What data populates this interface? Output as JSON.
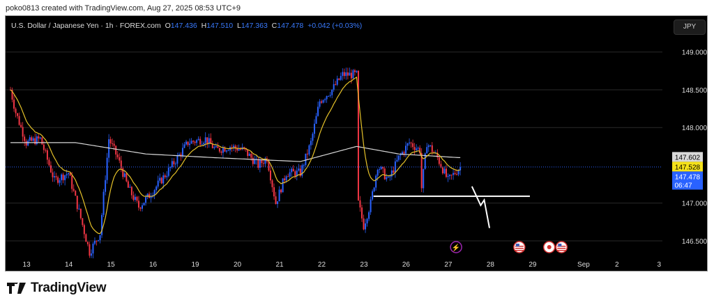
{
  "attribution": "poko0813 created with TradingView.com, Aug 27, 2025 08:53 UTC+9",
  "legend": {
    "symbol": "U.S. Dollar / Japanese Yen · 1h · FOREX.com",
    "o_label": "O",
    "o": "147.436",
    "h_label": "H",
    "h": "147.510",
    "l_label": "L",
    "l": "147.363",
    "c_label": "C",
    "c": "147.478",
    "change": "+0.042 (+0.03%)"
  },
  "currency_button": "JPY",
  "brand": "TradingView",
  "colors": {
    "up": "#2962ff",
    "down": "#f23645",
    "ma_fast": "#e6c229",
    "ma_slow": "#d8d8d8",
    "accent": "#2962ff"
  },
  "chart_data": {
    "type": "candlestick",
    "title": "U.S. Dollar / Japanese Yen · 1h · FOREX.com",
    "ylim": [
      146.1,
      149.25
    ],
    "y_ticks": [
      "149.000",
      "148.500",
      "148.000",
      "147.000",
      "146.500"
    ],
    "y_tick_values": [
      149.0,
      148.5,
      148.0,
      147.0,
      146.5
    ],
    "x_ticks": [
      {
        "label": "13",
        "hour": 6
      },
      {
        "label": "14",
        "hour": 30
      },
      {
        "label": "15",
        "hour": 54
      },
      {
        "label": "16",
        "hour": 78
      },
      {
        "label": "19",
        "hour": 102
      },
      {
        "label": "20",
        "hour": 126
      },
      {
        "label": "21",
        "hour": 150
      },
      {
        "label": "22",
        "hour": 174
      },
      {
        "label": "23",
        "hour": 198
      },
      {
        "label": "26",
        "hour": 222
      },
      {
        "label": "27",
        "hour": 246
      },
      {
        "label": "28",
        "hour": 270
      },
      {
        "label": "29",
        "hour": 294
      },
      {
        "label": "Sep",
        "hour": 323
      },
      {
        "label": "2",
        "hour": 342
      },
      {
        "label": "3",
        "hour": 366
      }
    ],
    "close_path_keyframes": [
      [
        0,
        148.5
      ],
      [
        3,
        148.2
      ],
      [
        9,
        147.8
      ],
      [
        17,
        147.85
      ],
      [
        25,
        147.3
      ],
      [
        33,
        147.4
      ],
      [
        40,
        146.8
      ],
      [
        45,
        146.35
      ],
      [
        51,
        146.6
      ],
      [
        56,
        147.85
      ],
      [
        61,
        147.6
      ],
      [
        67,
        147.2
      ],
      [
        73,
        146.95
      ],
      [
        79,
        147.1
      ],
      [
        89,
        147.4
      ],
      [
        101,
        147.8
      ],
      [
        111,
        147.85
      ],
      [
        117,
        147.7
      ],
      [
        125,
        147.75
      ],
      [
        133,
        147.7
      ],
      [
        141,
        147.5
      ],
      [
        146,
        147.6
      ],
      [
        151,
        147.0
      ],
      [
        157,
        147.4
      ],
      [
        165,
        147.4
      ],
      [
        171,
        147.8
      ],
      [
        176,
        148.35
      ],
      [
        183,
        148.5
      ],
      [
        189,
        148.7
      ],
      [
        197,
        148.7
      ],
      [
        198,
        147.0
      ],
      [
        201,
        146.7
      ],
      [
        205,
        147.0
      ],
      [
        209,
        147.5
      ],
      [
        215,
        147.3
      ],
      [
        221,
        147.6
      ],
      [
        227,
        147.8
      ],
      [
        233,
        147.7
      ],
      [
        234,
        147.2
      ],
      [
        237,
        147.8
      ],
      [
        243,
        147.6
      ],
      [
        249,
        147.3
      ],
      [
        256,
        147.478
      ]
    ],
    "ma_slow_keyframes": [
      [
        0,
        147.8
      ],
      [
        37,
        147.8
      ],
      [
        77,
        147.65
      ],
      [
        117,
        147.6
      ],
      [
        165,
        147.55
      ],
      [
        197,
        147.75
      ],
      [
        221,
        147.65
      ],
      [
        255,
        147.602
      ]
    ],
    "price_labels": {
      "ma_slow": "147.602",
      "ma_fast": "147.528",
      "last": "147.478",
      "countdown": "06:47"
    },
    "drawings": {
      "support_level": 147.09,
      "zigzag_points": [
        [
          265,
          147.22
        ],
        [
          270,
          146.97
        ],
        [
          272,
          147.04
        ],
        [
          275,
          146.67
        ]
      ],
      "support_from_hour": 209,
      "support_to_hour": 298
    },
    "events": [
      {
        "type": "lightning",
        "hour": 256
      },
      {
        "type": "us-flag",
        "hour": 292
      },
      {
        "type": "jp-flag",
        "hour": 309
      },
      {
        "type": "us-flag",
        "hour": 316
      }
    ]
  }
}
